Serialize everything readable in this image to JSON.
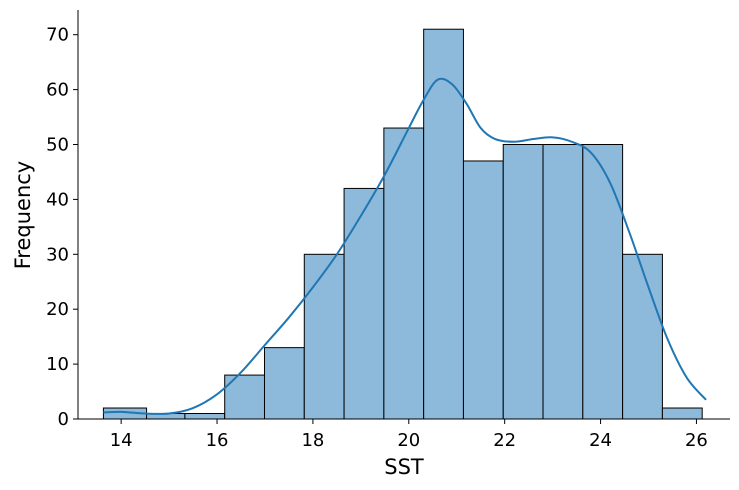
{
  "chart_data": {
    "type": "bar",
    "subtype": "histogram",
    "xlabel": "SST",
    "ylabel": "Frequency",
    "xlim": [
      13.1,
      26.7
    ],
    "ylim": [
      0,
      74.5
    ],
    "x_ticks": [
      14,
      16,
      18,
      20,
      22,
      24,
      26
    ],
    "y_ticks": [
      0,
      10,
      20,
      30,
      40,
      50,
      60,
      70
    ],
    "bin_edges": [
      13.63,
      14.53,
      15.33,
      16.16,
      16.99,
      17.82,
      18.65,
      19.48,
      20.31,
      21.14,
      21.97,
      22.8,
      23.63,
      24.46,
      25.29,
      26.12
    ],
    "values": [
      2,
      1,
      1,
      8,
      13,
      30,
      42,
      53,
      71,
      47,
      50,
      50,
      50,
      30,
      2
    ],
    "kde": {
      "x": [
        13.63,
        14.0,
        14.5,
        15.0,
        15.5,
        16.0,
        16.5,
        17.0,
        17.5,
        18.0,
        18.5,
        19.0,
        19.5,
        20.0,
        20.3,
        20.6,
        20.9,
        21.2,
        21.5,
        21.8,
        22.2,
        22.6,
        23.0,
        23.4,
        23.8,
        24.2,
        24.6,
        25.0,
        25.4,
        25.8,
        26.2
      ],
      "y": [
        1.2,
        1.3,
        1.0,
        1.0,
        2.0,
        4.5,
        8.5,
        13.5,
        18.5,
        24.0,
        30.0,
        37.0,
        44.5,
        53.0,
        58.0,
        61.8,
        61.0,
        57.5,
        53.0,
        51.0,
        50.5,
        51.0,
        51.3,
        50.5,
        48.5,
        43.0,
        34.0,
        24.0,
        14.5,
        7.5,
        3.5
      ]
    },
    "grid": false,
    "colors": {
      "bar_fill": "#8db9da",
      "bar_edge": "#000000",
      "kde_line": "#1f77b4"
    }
  }
}
